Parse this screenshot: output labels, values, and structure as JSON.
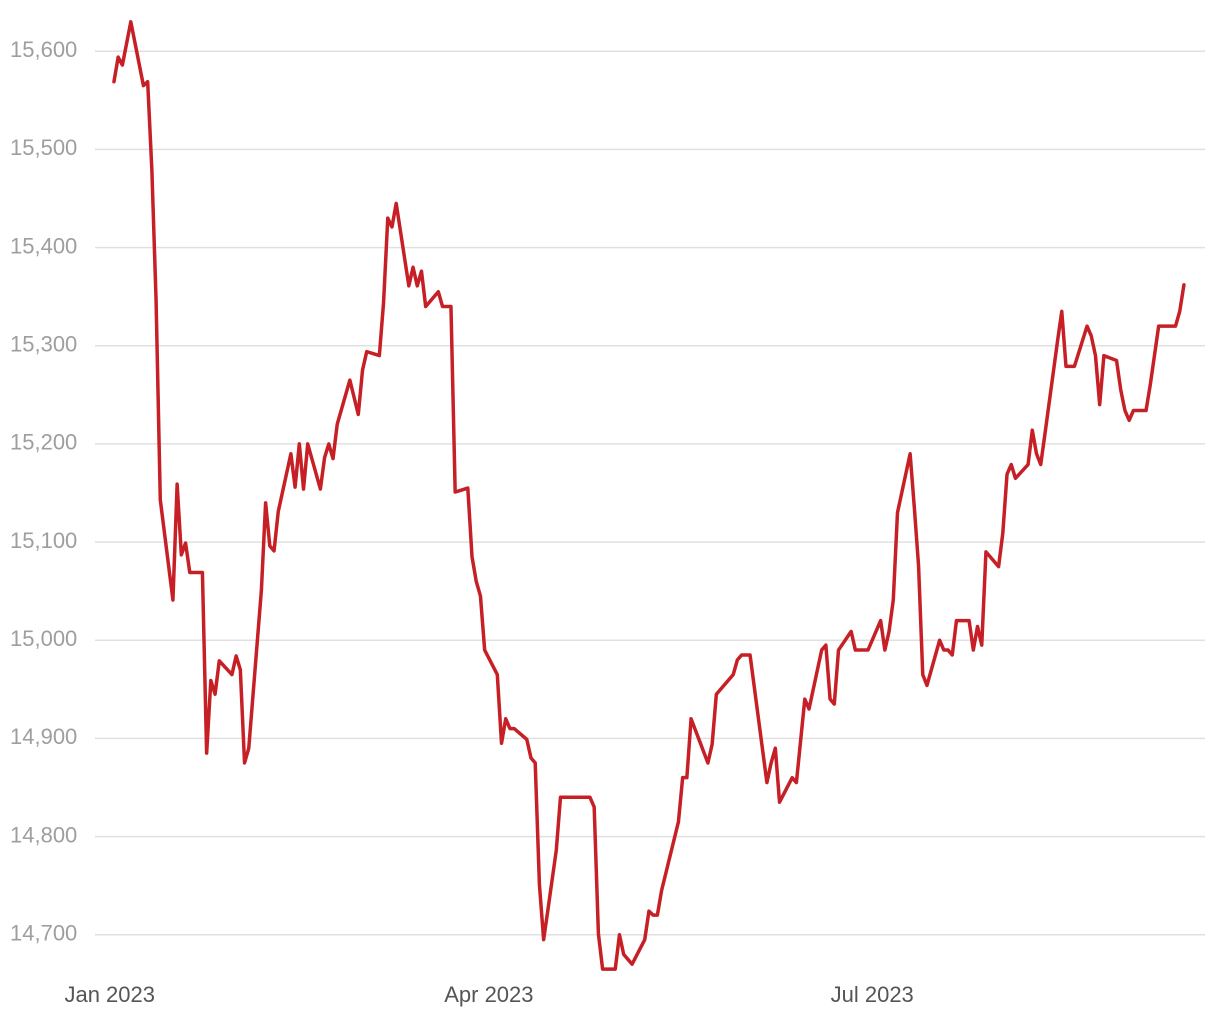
{
  "chart_data": {
    "type": "line",
    "color": "#c62026",
    "grid": true,
    "x": [
      1,
      2,
      3,
      5,
      8,
      9,
      10,
      11,
      12,
      15,
      16,
      17,
      18,
      19,
      22,
      23,
      24,
      25,
      26,
      29,
      30,
      31,
      32,
      33,
      36,
      37,
      38,
      39,
      40,
      43,
      44,
      45,
      46,
      47,
      50,
      51,
      52,
      53,
      54,
      57,
      59,
      60,
      61,
      64,
      65,
      66,
      67,
      68,
      71,
      72,
      73,
      74,
      75,
      78,
      79,
      81,
      82,
      85,
      86,
      87,
      88,
      89,
      92,
      93,
      94,
      95,
      96,
      99,
      100,
      101,
      102,
      103,
      104,
      106,
      107,
      114,
      115,
      116,
      117,
      120,
      121,
      122,
      124,
      127,
      128,
      129,
      130,
      131,
      135,
      136,
      137,
      138,
      142,
      143,
      144,
      148,
      149,
      150,
      152,
      156,
      157,
      158,
      159,
      162,
      163,
      165,
      166,
      169,
      170,
      171,
      172,
      173,
      176,
      177,
      180,
      183,
      184,
      185,
      186,
      187,
      190,
      191,
      192,
      193,
      194,
      197,
      198,
      199,
      200,
      201,
      204,
      205,
      206,
      207,
      208,
      211,
      212,
      213,
      214,
      215,
      218,
      219,
      220,
      221,
      222,
      225,
      226,
      227,
      229,
      232,
      233,
      234,
      235,
      236,
      239,
      240,
      241,
      242,
      243,
      246,
      247,
      249,
      253,
      254,
      255
    ],
    "values": [
      15569,
      15594,
      15586,
      15630,
      15565,
      15569,
      15479,
      15346,
      15143,
      15041,
      15159,
      15087,
      15099,
      15069,
      15069,
      14885,
      14959,
      14945,
      14979,
      14965,
      14984,
      14970,
      14875,
      14890,
      15051,
      15140,
      15096,
      15091,
      15131,
      15190,
      15156,
      15200,
      15154,
      15200,
      15154,
      15186,
      15200,
      15185,
      15220,
      15265,
      15230,
      15275,
      15294,
      15290,
      15344,
      15430,
      15421,
      15445,
      15361,
      15380,
      15361,
      15376,
      15340,
      15355,
      15340,
      15340,
      15151,
      15155,
      15085,
      15060,
      15045,
      14990,
      14965,
      14895,
      14920,
      14910,
      14910,
      14899,
      14880,
      14875,
      14751,
      14695,
      14725,
      14786,
      14840,
      14840,
      14830,
      14701,
      14665,
      14665,
      14700,
      14680,
      14670,
      14695,
      14724,
      14720,
      14720,
      14745,
      14815,
      14860,
      14860,
      14920,
      14875,
      14894,
      14945,
      14965,
      14980,
      14985,
      14985,
      14855,
      14875,
      14890,
      14835,
      14860,
      14855,
      14940,
      14930,
      14990,
      14995,
      14940,
      14935,
      14990,
      15009,
      14990,
      14990,
      15020,
      14990,
      15009,
      15041,
      15130,
      15190,
      15135,
      15076,
      14965,
      14954,
      15000,
      14990,
      14990,
      14985,
      15020,
      15020,
      14990,
      15014,
      14995,
      15090,
      15075,
      15109,
      15169,
      15179,
      15165,
      15179,
      15214,
      15190,
      15179,
      15210,
      15305,
      15335,
      15279,
      15279,
      15320,
      15310,
      15290,
      15240,
      15290,
      15285,
      15255,
      15234,
      15224,
      15234,
      15234,
      15260,
      15320,
      15320,
      15335,
      15362
    ],
    "xlim": [
      -3.5,
      260
    ],
    "xticks": [
      {
        "value": 0,
        "label": "Jan 2023"
      },
      {
        "value": 90,
        "label": "Apr 2023"
      },
      {
        "value": 181,
        "label": "Jul 2023"
      }
    ],
    "ylim": [
      14660,
      15640
    ],
    "yticks": [
      {
        "value": 14700,
        "label": "14,700"
      },
      {
        "value": 14800,
        "label": "14,800"
      },
      {
        "value": 14900,
        "label": "14,900"
      },
      {
        "value": 15000,
        "label": "15,000"
      },
      {
        "value": 15100,
        "label": "15,100"
      },
      {
        "value": 15200,
        "label": "15,200"
      },
      {
        "value": 15300,
        "label": "15,300"
      },
      {
        "value": 15400,
        "label": "15,400"
      },
      {
        "value": 15500,
        "label": "15,500"
      },
      {
        "value": 15600,
        "label": "15,600"
      }
    ]
  }
}
